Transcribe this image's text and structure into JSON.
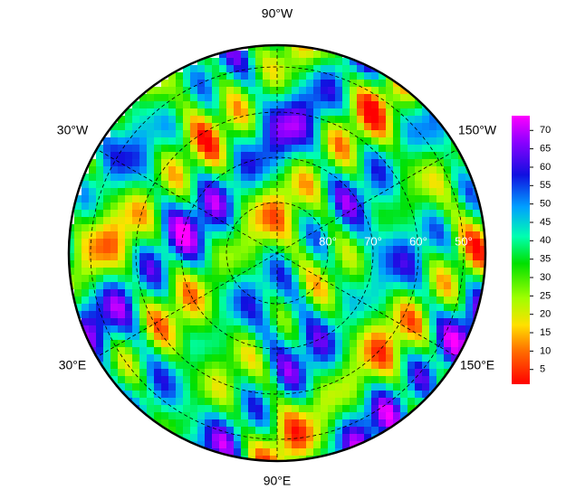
{
  "map": {
    "longitude_labels": {
      "top": "90°W",
      "upper_left": "30°W",
      "upper_right": "150°W",
      "lower_left": "30°E",
      "lower_right": "150°E",
      "bottom": "90°E"
    },
    "latitude_labels": [
      "80°",
      "70°",
      "60°",
      "50°"
    ],
    "colorbar": {
      "lim": [
        1,
        74
      ],
      "ticks": [
        5,
        10,
        15,
        20,
        25,
        30,
        35,
        40,
        45,
        50,
        55,
        60,
        65,
        70
      ]
    }
  }
}
